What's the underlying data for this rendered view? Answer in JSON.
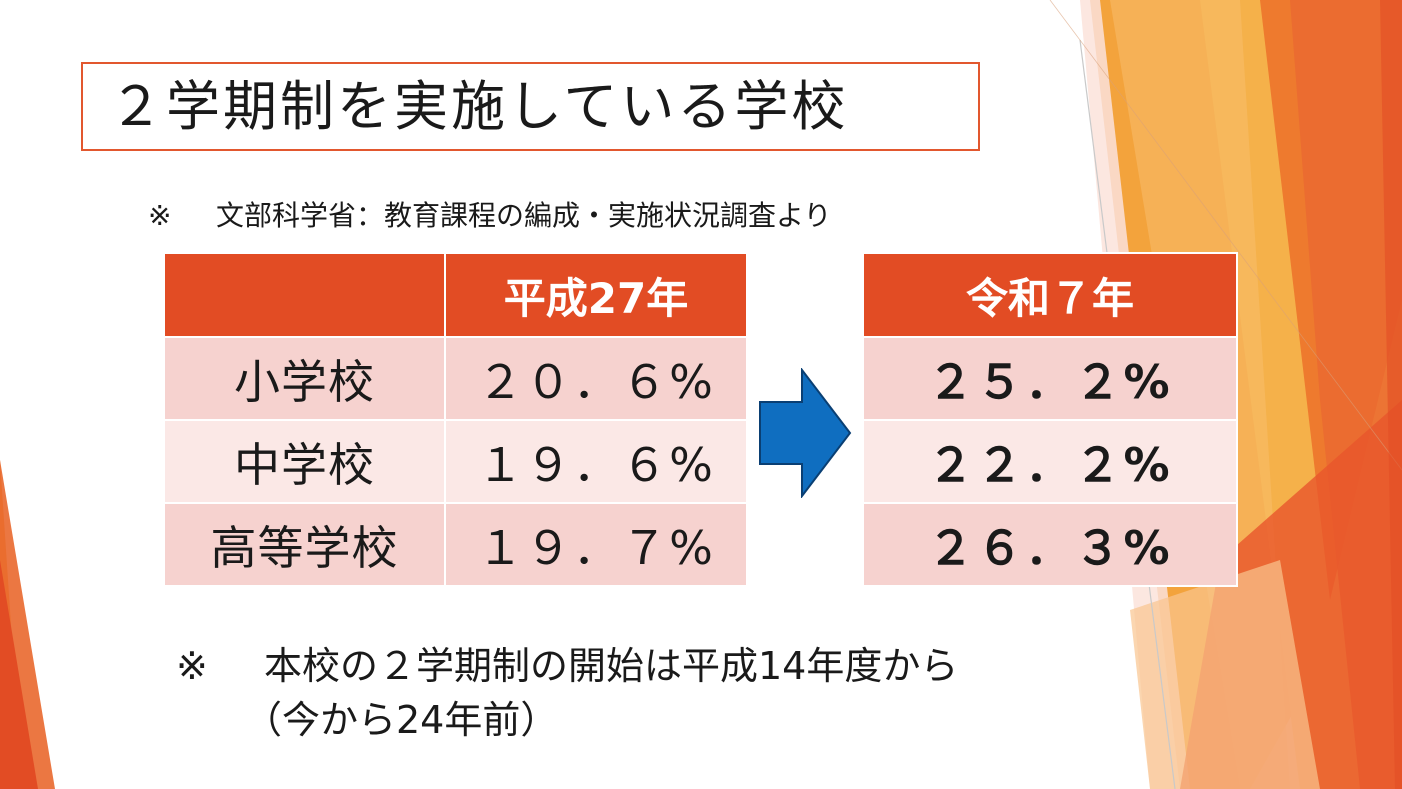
{
  "slide": {
    "title": "２学期制を実施している学校",
    "source_mark": "※",
    "source_text": "文部科学省：教育課程の編成・実施状況調査より",
    "table_h27": {
      "header": "平成27年",
      "rows": [
        {
          "level": "小学校",
          "value": "２０．６%"
        },
        {
          "level": "中学校",
          "value": "１９．６%"
        },
        {
          "level": "高等学校",
          "value": "１９．７%"
        }
      ]
    },
    "table_r7": {
      "header": "令和７年",
      "rows": [
        {
          "value": "２５．２%"
        },
        {
          "value": "２２．２%"
        },
        {
          "value": "２６．３%"
        }
      ]
    },
    "note_mark": "※",
    "note_line1": "本校の２学期制の開始は平成14年度から",
    "note_line2": "（今から24年前）"
  },
  "colors": {
    "accent_orange": "#e24c24",
    "row_pink": "#f6d2cf",
    "row_light_pink": "#fbe8e6",
    "arrow_blue": "#0f6ec0",
    "title_border": "#e2572e"
  }
}
